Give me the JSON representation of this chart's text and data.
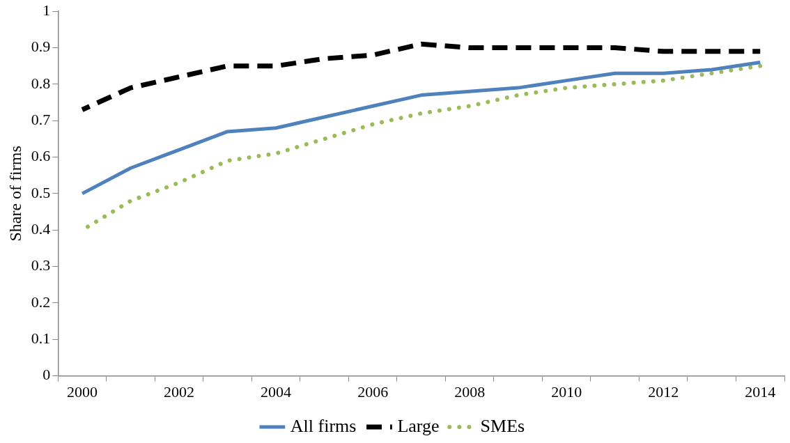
{
  "chart_data": {
    "type": "line",
    "ylabel": "Share of firms",
    "categories": [
      "2000",
      null,
      "2002",
      null,
      "2004",
      null,
      "2006",
      null,
      "2008",
      null,
      "2010",
      null,
      "2012",
      null,
      "2014"
    ],
    "ylim": [
      0,
      1
    ],
    "yticks": [
      0,
      0.1,
      0.2,
      0.3,
      0.4,
      0.5,
      0.6,
      0.7,
      0.8,
      0.9,
      1
    ],
    "grid": false,
    "legend": "bottom",
    "series": [
      {
        "name": "All firms",
        "color": "#4f81bd",
        "line_style": "solid",
        "values": [
          0.5,
          0.57,
          0.62,
          0.67,
          0.68,
          0.71,
          0.74,
          0.77,
          0.78,
          0.79,
          0.81,
          0.83,
          0.83,
          0.84,
          0.86
        ]
      },
      {
        "name": "Large",
        "color": "#000000",
        "line_style": "dashed",
        "values": [
          0.73,
          0.79,
          0.82,
          0.85,
          0.85,
          0.87,
          0.88,
          0.91,
          0.9,
          0.9,
          0.9,
          0.9,
          0.89,
          0.89,
          0.89
        ]
      },
      {
        "name": "SMEs",
        "color": "#9bbb59",
        "line_style": "dotted",
        "values": [
          0.4,
          0.48,
          0.53,
          0.59,
          0.61,
          0.65,
          0.69,
          0.72,
          0.74,
          0.77,
          0.79,
          0.8,
          0.81,
          0.83,
          0.85
        ]
      }
    ]
  }
}
